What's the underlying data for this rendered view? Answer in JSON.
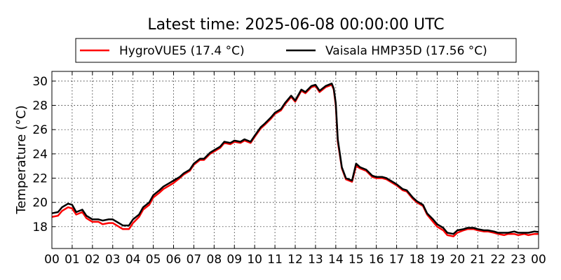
{
  "chart_data": {
    "type": "line",
    "title": "Latest time: 2025-06-08 00:00:00 UTC",
    "xlabel": "",
    "ylabel": "Temperature (°C)",
    "xlim": [
      0,
      24
    ],
    "ylim": [
      16.2,
      30.8
    ],
    "x_tick_values": [
      0,
      1,
      2,
      3,
      4,
      5,
      6,
      7,
      8,
      9,
      10,
      11,
      12,
      13,
      14,
      15,
      16,
      17,
      18,
      19,
      20,
      21,
      22,
      23,
      24
    ],
    "x_tick_labels": [
      "00",
      "01",
      "02",
      "03",
      "04",
      "05",
      "06",
      "07",
      "08",
      "09",
      "10",
      "11",
      "12",
      "13",
      "14",
      "15",
      "16",
      "17",
      "18",
      "19",
      "20",
      "21",
      "22",
      "23",
      "00"
    ],
    "y_tick_values": [
      18,
      20,
      22,
      24,
      26,
      28,
      30
    ],
    "y_tick_labels": [
      "18",
      "20",
      "22",
      "24",
      "26",
      "28",
      "30"
    ],
    "grid": true,
    "legend_position": "top-center",
    "series": [
      {
        "name": "HygroVUE5 (17.4 °C)",
        "color": "#ff0000",
        "points": [
          [
            0.0,
            18.8
          ],
          [
            0.3,
            18.9
          ],
          [
            0.5,
            19.3
          ],
          [
            0.8,
            19.6
          ],
          [
            1.0,
            19.5
          ],
          [
            1.2,
            19.0
          ],
          [
            1.5,
            19.2
          ],
          [
            1.7,
            18.7
          ],
          [
            2.0,
            18.4
          ],
          [
            2.3,
            18.4
          ],
          [
            2.5,
            18.2
          ],
          [
            2.8,
            18.3
          ],
          [
            3.0,
            18.3
          ],
          [
            3.3,
            18.0
          ],
          [
            3.5,
            17.8
          ],
          [
            3.8,
            17.8
          ],
          [
            4.0,
            18.3
          ],
          [
            4.3,
            18.8
          ],
          [
            4.5,
            19.4
          ],
          [
            4.8,
            19.8
          ],
          [
            5.0,
            20.4
          ],
          [
            5.3,
            20.8
          ],
          [
            5.5,
            21.1
          ],
          [
            5.8,
            21.4
          ],
          [
            6.0,
            21.6
          ],
          [
            6.3,
            22.0
          ],
          [
            6.5,
            22.3
          ],
          [
            6.8,
            22.6
          ],
          [
            7.0,
            23.1
          ],
          [
            7.3,
            23.5
          ],
          [
            7.5,
            23.5
          ],
          [
            7.8,
            24.0
          ],
          [
            8.0,
            24.2
          ],
          [
            8.3,
            24.5
          ],
          [
            8.5,
            24.9
          ],
          [
            8.8,
            24.8
          ],
          [
            9.0,
            25.0
          ],
          [
            9.3,
            24.9
          ],
          [
            9.5,
            25.1
          ],
          [
            9.8,
            24.9
          ],
          [
            10.0,
            25.4
          ],
          [
            10.3,
            26.1
          ],
          [
            10.5,
            26.4
          ],
          [
            10.8,
            26.9
          ],
          [
            11.0,
            27.3
          ],
          [
            11.3,
            27.6
          ],
          [
            11.5,
            28.1
          ],
          [
            11.8,
            28.7
          ],
          [
            12.0,
            28.3
          ],
          [
            12.3,
            29.2
          ],
          [
            12.5,
            29.0
          ],
          [
            12.8,
            29.5
          ],
          [
            13.0,
            29.6
          ],
          [
            13.2,
            29.1
          ],
          [
            13.5,
            29.5
          ],
          [
            13.8,
            29.7
          ],
          [
            13.9,
            29.3
          ],
          [
            14.0,
            28.0
          ],
          [
            14.1,
            25.0
          ],
          [
            14.3,
            22.8
          ],
          [
            14.5,
            21.9
          ],
          [
            14.8,
            21.7
          ],
          [
            15.0,
            23.0
          ],
          [
            15.2,
            22.8
          ],
          [
            15.5,
            22.6
          ],
          [
            15.8,
            22.1
          ],
          [
            16.0,
            22.0
          ],
          [
            16.3,
            22.0
          ],
          [
            16.5,
            21.9
          ],
          [
            16.8,
            21.6
          ],
          [
            17.0,
            21.4
          ],
          [
            17.3,
            21.0
          ],
          [
            17.5,
            20.9
          ],
          [
            17.8,
            20.3
          ],
          [
            18.0,
            20.0
          ],
          [
            18.3,
            19.7
          ],
          [
            18.5,
            19.0
          ],
          [
            18.8,
            18.4
          ],
          [
            19.0,
            18.0
          ],
          [
            19.3,
            17.7
          ],
          [
            19.5,
            17.3
          ],
          [
            19.8,
            17.2
          ],
          [
            20.0,
            17.5
          ],
          [
            20.3,
            17.7
          ],
          [
            20.5,
            17.8
          ],
          [
            20.8,
            17.8
          ],
          [
            21.0,
            17.7
          ],
          [
            21.3,
            17.6
          ],
          [
            21.5,
            17.6
          ],
          [
            21.8,
            17.5
          ],
          [
            22.0,
            17.4
          ],
          [
            22.3,
            17.3
          ],
          [
            22.5,
            17.4
          ],
          [
            22.8,
            17.4
          ],
          [
            23.0,
            17.3
          ],
          [
            23.3,
            17.4
          ],
          [
            23.5,
            17.3
          ],
          [
            23.8,
            17.4
          ],
          [
            24.0,
            17.4
          ]
        ]
      },
      {
        "name": "Vaisala HMP35D (17.56 °C)",
        "color": "#000000",
        "points": [
          [
            0.0,
            19.1
          ],
          [
            0.3,
            19.2
          ],
          [
            0.5,
            19.6
          ],
          [
            0.8,
            19.9
          ],
          [
            1.0,
            19.8
          ],
          [
            1.2,
            19.2
          ],
          [
            1.5,
            19.4
          ],
          [
            1.7,
            18.9
          ],
          [
            2.0,
            18.6
          ],
          [
            2.3,
            18.6
          ],
          [
            2.5,
            18.5
          ],
          [
            2.8,
            18.6
          ],
          [
            3.0,
            18.6
          ],
          [
            3.3,
            18.3
          ],
          [
            3.5,
            18.1
          ],
          [
            3.8,
            18.1
          ],
          [
            4.0,
            18.6
          ],
          [
            4.3,
            19.0
          ],
          [
            4.5,
            19.6
          ],
          [
            4.8,
            20.0
          ],
          [
            5.0,
            20.6
          ],
          [
            5.3,
            21.0
          ],
          [
            5.5,
            21.3
          ],
          [
            5.8,
            21.6
          ],
          [
            6.0,
            21.8
          ],
          [
            6.3,
            22.1
          ],
          [
            6.5,
            22.4
          ],
          [
            6.8,
            22.7
          ],
          [
            7.0,
            23.2
          ],
          [
            7.3,
            23.6
          ],
          [
            7.5,
            23.6
          ],
          [
            7.8,
            24.1
          ],
          [
            8.0,
            24.3
          ],
          [
            8.3,
            24.6
          ],
          [
            8.5,
            25.0
          ],
          [
            8.8,
            24.9
          ],
          [
            9.0,
            25.1
          ],
          [
            9.3,
            25.0
          ],
          [
            9.5,
            25.2
          ],
          [
            9.8,
            25.0
          ],
          [
            10.0,
            25.5
          ],
          [
            10.3,
            26.2
          ],
          [
            10.5,
            26.5
          ],
          [
            10.8,
            27.0
          ],
          [
            11.0,
            27.4
          ],
          [
            11.3,
            27.7
          ],
          [
            11.5,
            28.2
          ],
          [
            11.8,
            28.8
          ],
          [
            12.0,
            28.4
          ],
          [
            12.3,
            29.3
          ],
          [
            12.5,
            29.1
          ],
          [
            12.8,
            29.6
          ],
          [
            13.0,
            29.7
          ],
          [
            13.2,
            29.2
          ],
          [
            13.5,
            29.6
          ],
          [
            13.8,
            29.8
          ],
          [
            13.9,
            29.4
          ],
          [
            14.0,
            28.2
          ],
          [
            14.1,
            25.2
          ],
          [
            14.3,
            22.9
          ],
          [
            14.5,
            22.0
          ],
          [
            14.8,
            21.8
          ],
          [
            15.0,
            23.2
          ],
          [
            15.2,
            22.9
          ],
          [
            15.5,
            22.7
          ],
          [
            15.8,
            22.2
          ],
          [
            16.0,
            22.1
          ],
          [
            16.3,
            22.1
          ],
          [
            16.5,
            22.0
          ],
          [
            16.8,
            21.7
          ],
          [
            17.0,
            21.5
          ],
          [
            17.3,
            21.1
          ],
          [
            17.5,
            21.0
          ],
          [
            17.8,
            20.4
          ],
          [
            18.0,
            20.1
          ],
          [
            18.3,
            19.8
          ],
          [
            18.5,
            19.1
          ],
          [
            18.8,
            18.6
          ],
          [
            19.0,
            18.2
          ],
          [
            19.3,
            17.9
          ],
          [
            19.5,
            17.5
          ],
          [
            19.8,
            17.4
          ],
          [
            20.0,
            17.7
          ],
          [
            20.3,
            17.8
          ],
          [
            20.5,
            17.9
          ],
          [
            20.8,
            17.9
          ],
          [
            21.0,
            17.8
          ],
          [
            21.3,
            17.7
          ],
          [
            21.5,
            17.7
          ],
          [
            21.8,
            17.6
          ],
          [
            22.0,
            17.5
          ],
          [
            22.3,
            17.5
          ],
          [
            22.5,
            17.5
          ],
          [
            22.8,
            17.6
          ],
          [
            23.0,
            17.5
          ],
          [
            23.3,
            17.5
          ],
          [
            23.5,
            17.5
          ],
          [
            23.8,
            17.6
          ],
          [
            24.0,
            17.56
          ]
        ]
      }
    ]
  }
}
